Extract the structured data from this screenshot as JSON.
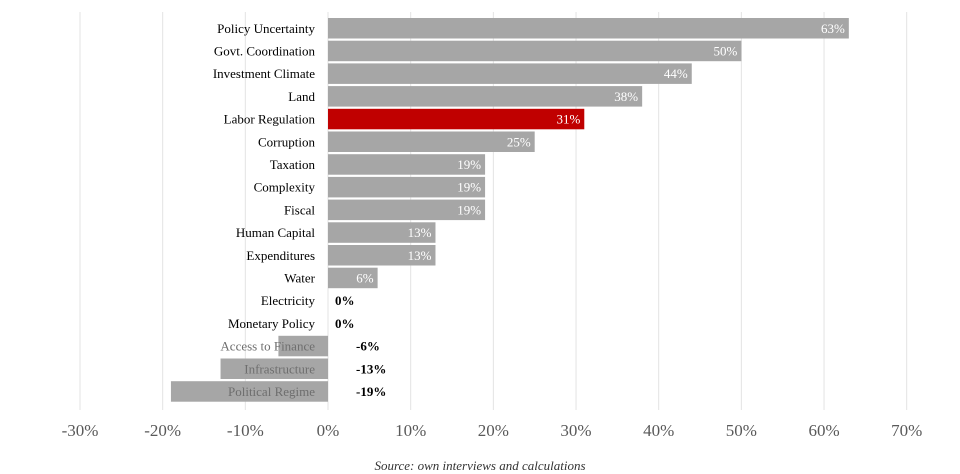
{
  "chart_data": {
    "type": "bar",
    "orientation": "horizontal",
    "categories": [
      "Policy Uncertainty",
      "Govt. Coordination",
      "Investment Climate",
      "Land",
      "Labor Regulation",
      "Corruption",
      "Taxation",
      "Complexity",
      "Fiscal",
      "Human Capital",
      "Expenditures",
      "Water",
      "Electricity",
      "Monetary Policy",
      "Access to Finance",
      "Infrastructure",
      "Political Regime"
    ],
    "values": [
      63,
      50,
      44,
      38,
      31,
      25,
      19,
      19,
      19,
      13,
      13,
      6,
      0,
      0,
      -6,
      -13,
      -19
    ],
    "data_labels": [
      "63%",
      "50%",
      "44%",
      "38%",
      "31%",
      "25%",
      "19%",
      "19%",
      "19%",
      "13%",
      "13%",
      "6%",
      "0%",
      "0%",
      "-6%",
      "-13%",
      "-19%"
    ],
    "xlim": [
      -30,
      70
    ],
    "xticks": [
      "-30%",
      "-20%",
      "-10%",
      "0%",
      "10%",
      "20%",
      "30%",
      "40%",
      "50%",
      "60%",
      "70%"
    ],
    "grid": "vertical",
    "colors": {
      "bar": "#a6a6a6",
      "highlight": "#c00000",
      "gridline": "#e3e3e3"
    },
    "highlight_category": "Labor Regulation",
    "title": "",
    "xlabel": "",
    "ylabel": ""
  },
  "source_note": "Source: own interviews and calculations"
}
